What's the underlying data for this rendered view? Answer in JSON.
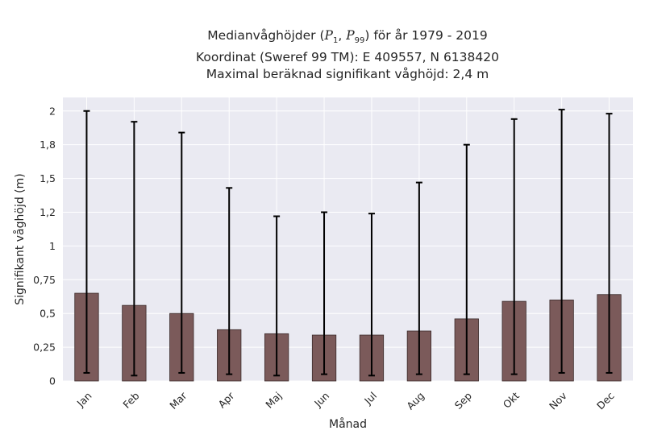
{
  "title": {
    "line1_prefix": "Medianvåghöjder (",
    "p1": "P",
    "p1_sub": "1",
    "sep": ", ",
    "p99": "P",
    "p99_sub": "99",
    "line1_suffix": ") för år 1979 - 2019",
    "line2": "Koordinat (Sweref 99 TM): E 409557, N 6138420",
    "line3": "Maximal beräknad signifikant våghöjd: 2,4 m"
  },
  "colors": {
    "plot_bg": "#eaeaf2",
    "grid": "#ffffff",
    "bar": "#7b5a5a",
    "bar_edge": "#3a2a2a",
    "error": "#000000"
  },
  "chart_data": {
    "type": "bar",
    "categories": [
      "Jan",
      "Feb",
      "Mar",
      "Apr",
      "Maj",
      "Jun",
      "Jul",
      "Aug",
      "Sep",
      "Okt",
      "Nov",
      "Dec"
    ],
    "values": [
      0.65,
      0.56,
      0.5,
      0.38,
      0.35,
      0.34,
      0.34,
      0.37,
      0.46,
      0.59,
      0.6,
      0.64
    ],
    "p1": [
      0.06,
      0.04,
      0.06,
      0.05,
      0.04,
      0.05,
      0.04,
      0.05,
      0.05,
      0.05,
      0.06,
      0.06
    ],
    "p99": [
      2.0,
      1.92,
      1.84,
      1.43,
      1.22,
      1.25,
      1.24,
      1.47,
      1.75,
      1.94,
      2.01,
      1.98
    ],
    "xlabel": "Månad",
    "ylabel": "Signifikant våghöjd (m)",
    "ylim": [
      0,
      2.1
    ],
    "yticks": [
      0,
      0.25,
      0.5,
      0.75,
      1,
      1.25,
      1.5,
      1.75,
      2
    ],
    "ytick_labels": [
      "0",
      "0,25",
      "0,5",
      "0,75",
      "1",
      "1,2",
      "1,5",
      "1,8",
      "2"
    ],
    "grid": true
  }
}
